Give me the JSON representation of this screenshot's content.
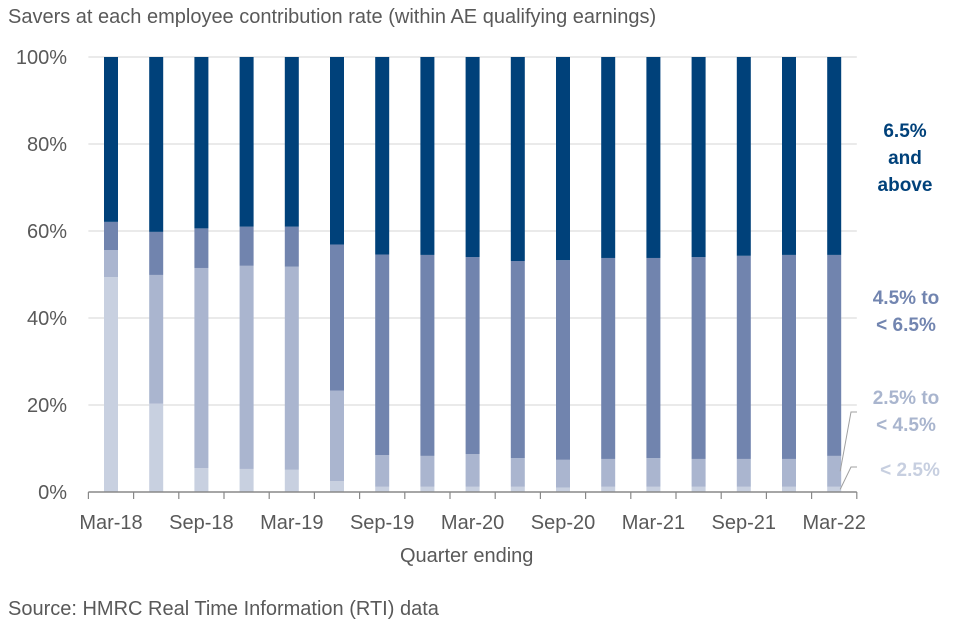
{
  "chart_data": {
    "type": "bar",
    "stacked": true,
    "title": "Savers at each employee contribution rate (within AE qualifying earnings)",
    "xlabel": "Quarter ending",
    "ylabel": "",
    "ylim": [
      0,
      100
    ],
    "yticks": [
      "0%",
      "20%",
      "40%",
      "60%",
      "80%",
      "100%"
    ],
    "categories": [
      "Mar-18",
      "Jun-18",
      "Sep-18",
      "Dec-18",
      "Mar-19",
      "Jun-19",
      "Sep-19",
      "Dec-19",
      "Mar-20",
      "Jun-20",
      "Sep-20",
      "Dec-20",
      "Mar-21",
      "Jun-21",
      "Sep-21",
      "Dec-21",
      "Mar-22"
    ],
    "xtick_labels": [
      "Mar-18",
      "",
      "Sep-18",
      "",
      "Mar-19",
      "",
      "Sep-19",
      "",
      "Mar-20",
      "",
      "Sep-20",
      "",
      "Mar-21",
      "",
      "Sep-21",
      "",
      "Mar-22"
    ],
    "series": [
      {
        "name": "< 2.5%",
        "color": "#c8d0e0",
        "values": [
          49.4,
          20.3,
          5.5,
          5.3,
          5.1,
          2.5,
          1.2,
          1.2,
          1.2,
          1.2,
          1.0,
          1.2,
          1.2,
          1.2,
          1.2,
          1.2,
          1.2
        ]
      },
      {
        "name": "2.5% to < 4.5%",
        "color": "#aab5cf",
        "values": [
          6.2,
          29.6,
          46.0,
          46.7,
          46.7,
          20.8,
          7.3,
          7.1,
          7.5,
          6.6,
          6.4,
          6.4,
          6.6,
          6.4,
          6.4,
          6.4,
          7.1
        ]
      },
      {
        "name": "4.5% to < 6.5%",
        "color": "#7184ae",
        "values": [
          6.5,
          9.9,
          9.1,
          9.0,
          9.2,
          33.6,
          46.1,
          46.2,
          45.3,
          45.3,
          45.9,
          46.2,
          46.0,
          46.4,
          46.7,
          46.9,
          46.2
        ]
      },
      {
        "name": "6.5% and above",
        "color": "#00417a",
        "values": [
          37.9,
          40.2,
          39.4,
          39.0,
          39.0,
          43.1,
          45.4,
          45.5,
          46.0,
          46.9,
          46.7,
          46.2,
          46.2,
          46.0,
          45.7,
          45.5,
          45.5
        ]
      }
    ],
    "legend": {
      "placement": "right",
      "labels": [
        {
          "lines": [
            "6.5%",
            "and",
            "above"
          ],
          "color": "#00417a"
        },
        {
          "lines": [
            "4.5% to",
            "< 6.5%"
          ],
          "color": "#7285b0"
        },
        {
          "lines": [
            "2.5% to",
            "< 4.5%"
          ],
          "color": "#a9b5ce"
        },
        {
          "lines": [
            "< 2.5%"
          ],
          "color": "#c7cfe0"
        }
      ]
    },
    "grid": true,
    "source": "Source: HMRC Real Time Information (RTI) data"
  }
}
